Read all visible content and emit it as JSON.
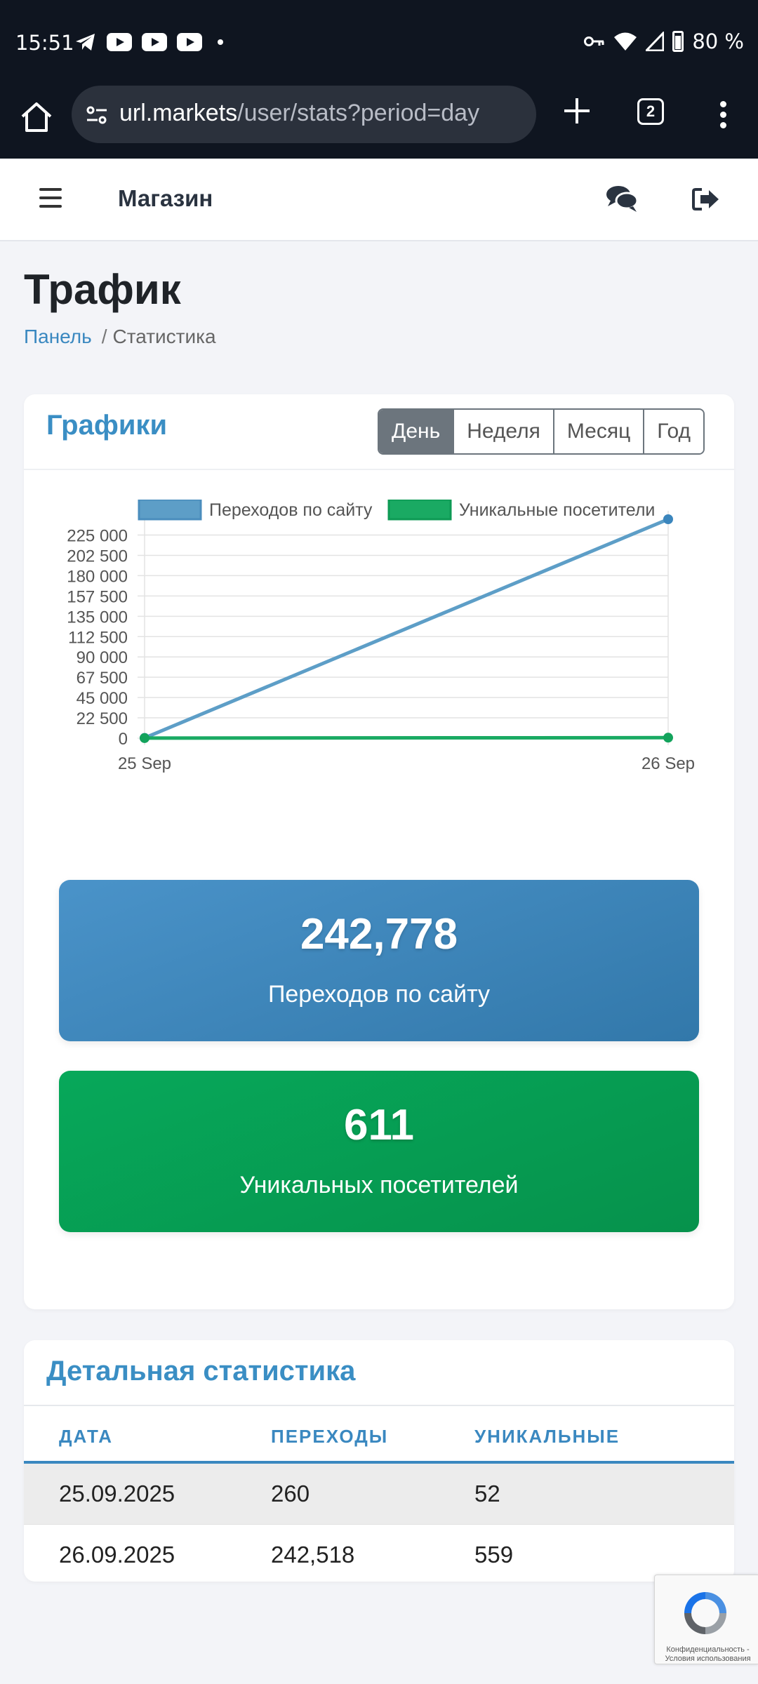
{
  "status_bar": {
    "time": "15:51",
    "battery": "80 %"
  },
  "browser": {
    "url_domain": "url.markets",
    "url_path": "/user/stats?period=day",
    "tab_count": "2"
  },
  "header": {
    "brand": "Магазин"
  },
  "page": {
    "title": "Трафик"
  },
  "breadcrumb": {
    "home": "Панель",
    "separator": "/",
    "current": "Статистика"
  },
  "charts_card": {
    "title": "Графики",
    "periods": [
      {
        "label": "День",
        "active": true
      },
      {
        "label": "Неделя",
        "active": false
      },
      {
        "label": "Месяц",
        "active": false
      },
      {
        "label": "Год",
        "active": false
      }
    ]
  },
  "chart_data": {
    "type": "line",
    "x": [
      "25 Sep",
      "26 Sep"
    ],
    "series": [
      {
        "name": "Переходов по сайту",
        "values": [
          260,
          242518
        ],
        "color": "#5d9ec7"
      },
      {
        "name": "Уникальные посетители",
        "values": [
          52,
          559
        ],
        "color": "#1aaa63"
      }
    ],
    "y_ticks": [
      "225 000",
      "202 500",
      "180 000",
      "157 500",
      "135 000",
      "112 500",
      "90 000",
      "67 500",
      "45 000",
      "22 500",
      "0"
    ],
    "ylim": [
      0,
      242518
    ],
    "legend_position": "top",
    "grid": true,
    "title": "",
    "xlabel": "",
    "ylabel": ""
  },
  "stats": {
    "visits": {
      "value": "242,778",
      "label": "Переходов по сайту",
      "color": "#3a83b8"
    },
    "unique": {
      "value": "611",
      "label": "Уникальных посетителей",
      "color": "#079d54"
    }
  },
  "details": {
    "title": "Детальная статистика",
    "columns": [
      "ДАТА",
      "ПЕРЕХОДЫ",
      "УНИКАЛЬНЫЕ"
    ],
    "rows": [
      [
        "25.09.2025",
        "260",
        "52"
      ],
      [
        "26.09.2025",
        "242,518",
        "559"
      ]
    ]
  },
  "recaptcha": {
    "text_line1": "Конфиденциальность -",
    "text_line2": "Условия использования"
  }
}
